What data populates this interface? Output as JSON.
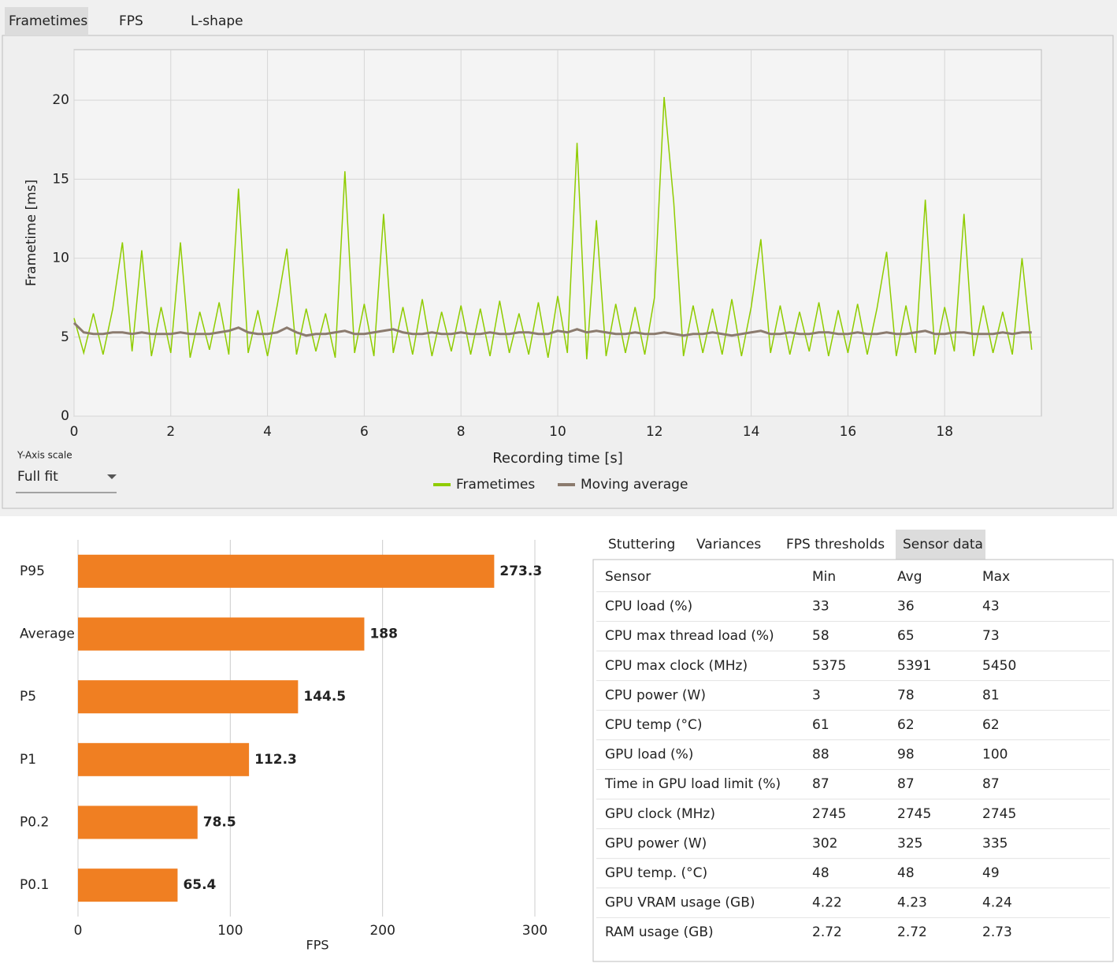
{
  "tabs": [
    "Frametimes",
    "FPS",
    "L-shape"
  ],
  "y_axis_scale": {
    "label": "Y-Axis scale",
    "value": "Full fit"
  },
  "chart_data": [
    {
      "type": "line",
      "xlabel": "Recording time [s]",
      "ylabel": "Frametime [ms]",
      "xlim": [
        0,
        20
      ],
      "ylim": [
        0,
        23.2
      ],
      "xticks": [
        0,
        2,
        4,
        6,
        8,
        10,
        12,
        14,
        16,
        18
      ],
      "yticks": [
        0,
        5,
        10,
        15,
        20
      ],
      "grid": true,
      "legend": "bottom",
      "x": [
        0,
        0.2,
        0.4,
        0.6,
        0.8,
        1,
        1.2,
        1.4,
        1.6,
        1.8,
        2,
        2.2,
        2.4,
        2.6,
        2.8,
        3,
        3.2,
        3.4,
        3.6,
        3.8,
        4,
        4.2,
        4.4,
        4.6,
        4.8,
        5,
        5.2,
        5.4,
        5.6,
        5.8,
        6,
        6.2,
        6.4,
        6.6,
        6.8,
        7,
        7.2,
        7.4,
        7.6,
        7.8,
        8,
        8.2,
        8.4,
        8.6,
        8.8,
        9,
        9.2,
        9.4,
        9.6,
        9.8,
        10,
        10.2,
        10.4,
        10.6,
        10.8,
        11,
        11.2,
        11.4,
        11.6,
        11.8,
        12,
        12.2,
        12.4,
        12.6,
        12.8,
        13,
        13.2,
        13.4,
        13.6,
        13.8,
        14,
        14.2,
        14.4,
        14.6,
        14.8,
        15,
        15.2,
        15.4,
        15.6,
        15.8,
        16,
        16.2,
        16.4,
        16.6,
        16.8,
        17,
        17.2,
        17.4,
        17.6,
        17.8,
        18,
        18.2,
        18.4,
        18.6,
        18.8,
        19,
        19.2,
        19.4,
        19.6,
        19.8
      ],
      "series": [
        {
          "name": "Frametimes",
          "color": "#8fcc00",
          "values": [
            6.2,
            4.0,
            6.5,
            3.9,
            6.8,
            11.0,
            4.1,
            10.5,
            3.8,
            6.9,
            4.0,
            11.0,
            3.7,
            6.6,
            4.2,
            7.2,
            3.9,
            14.4,
            4.0,
            6.7,
            3.8,
            7.0,
            10.6,
            3.9,
            6.8,
            4.1,
            6.5,
            3.7,
            15.5,
            4.0,
            7.1,
            3.8,
            12.8,
            4.0,
            6.9,
            3.9,
            7.4,
            3.8,
            6.6,
            4.1,
            7.0,
            3.9,
            6.8,
            3.8,
            7.3,
            4.0,
            6.5,
            3.9,
            7.2,
            3.7,
            7.6,
            4.0,
            17.3,
            3.6,
            12.4,
            3.8,
            7.1,
            4.0,
            6.9,
            3.9,
            7.5,
            20.2,
            13.5,
            3.8,
            7.0,
            4.0,
            6.8,
            3.9,
            7.4,
            3.8,
            6.9,
            11.2,
            4.0,
            7.0,
            3.9,
            6.6,
            4.1,
            7.2,
            3.8,
            6.7,
            4.0,
            7.1,
            3.9,
            6.8,
            10.4,
            3.8,
            7.0,
            4.0,
            13.7,
            3.9,
            6.9,
            4.1,
            12.8,
            3.8,
            7.0,
            4.0,
            6.6,
            3.9,
            10.0,
            4.2
          ]
        },
        {
          "name": "Moving average",
          "color": "#8b7b6e",
          "values": [
            5.9,
            5.3,
            5.2,
            5.2,
            5.3,
            5.3,
            5.2,
            5.3,
            5.2,
            5.2,
            5.2,
            5.3,
            5.2,
            5.2,
            5.2,
            5.3,
            5.4,
            5.6,
            5.3,
            5.2,
            5.2,
            5.3,
            5.6,
            5.3,
            5.1,
            5.2,
            5.2,
            5.3,
            5.4,
            5.2,
            5.2,
            5.3,
            5.4,
            5.5,
            5.3,
            5.2,
            5.2,
            5.3,
            5.2,
            5.2,
            5.3,
            5.2,
            5.2,
            5.3,
            5.2,
            5.2,
            5.3,
            5.3,
            5.2,
            5.2,
            5.4,
            5.3,
            5.5,
            5.3,
            5.4,
            5.3,
            5.2,
            5.2,
            5.3,
            5.2,
            5.2,
            5.3,
            5.2,
            5.1,
            5.2,
            5.2,
            5.3,
            5.2,
            5.1,
            5.2,
            5.3,
            5.4,
            5.2,
            5.2,
            5.3,
            5.2,
            5.2,
            5.3,
            5.3,
            5.2,
            5.2,
            5.3,
            5.2,
            5.2,
            5.3,
            5.2,
            5.2,
            5.3,
            5.4,
            5.2,
            5.2,
            5.3,
            5.3,
            5.2,
            5.2,
            5.2,
            5.3,
            5.2,
            5.3,
            5.3
          ]
        }
      ]
    },
    {
      "type": "bar",
      "orientation": "horizontal",
      "xlabel": "FPS",
      "color": "#f07f22",
      "grid": true,
      "categories": [
        "P95",
        "Average",
        "P5",
        "P1",
        "P0.2",
        "P0.1"
      ],
      "values": [
        273.3,
        188,
        144.5,
        112.3,
        78.5,
        65.4
      ],
      "xlim": [
        0,
        300
      ],
      "xticks": [
        0,
        100,
        200,
        300
      ]
    }
  ],
  "sub_tabs": [
    "Stuttering",
    "Variances",
    "FPS thresholds",
    "Sensor data"
  ],
  "table": {
    "columns": [
      "Sensor",
      "Min",
      "Avg",
      "Max"
    ],
    "rows": [
      [
        "CPU load (%)",
        33,
        36,
        43
      ],
      [
        "CPU max thread load (%)",
        58,
        65,
        73
      ],
      [
        "CPU max clock (MHz)",
        5375,
        5391,
        5450
      ],
      [
        "CPU power (W)",
        3,
        78,
        81
      ],
      [
        "CPU temp (°C)",
        61,
        62,
        62
      ],
      [
        "GPU load (%)",
        88,
        98,
        100
      ],
      [
        "Time in GPU load limit (%)",
        87,
        87,
        87
      ],
      [
        "GPU clock (MHz)",
        2745,
        2745,
        2745
      ],
      [
        "GPU power (W)",
        302,
        325,
        335
      ],
      [
        "GPU temp. (°C)",
        48,
        48,
        49
      ],
      [
        "GPU VRAM usage (GB)",
        4.22,
        4.23,
        4.24
      ],
      [
        "RAM usage (GB)",
        2.72,
        2.72,
        2.73
      ]
    ]
  }
}
